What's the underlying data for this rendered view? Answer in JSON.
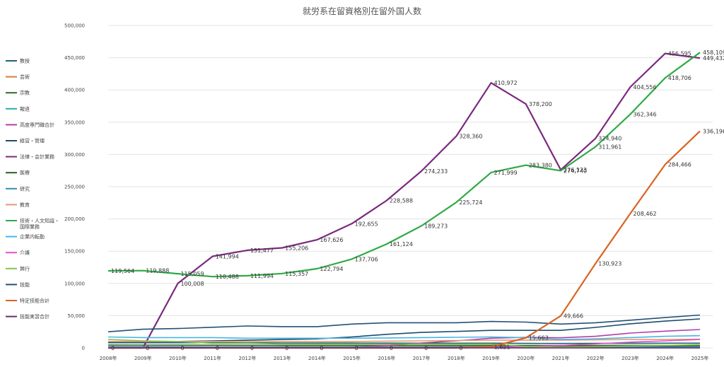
{
  "chart_data": {
    "type": "line",
    "title": "就労系在留資格別在留外国人数",
    "xlabel": "",
    "ylabel": "",
    "ylim": [
      0,
      500000
    ],
    "yticks": [
      "0",
      "50,000",
      "100,000",
      "150,000",
      "200,000",
      "250,000",
      "300,000",
      "350,000",
      "400,000",
      "450,000",
      "500,000"
    ],
    "x": [
      "2008年",
      "2009年",
      "2010年",
      "2011年",
      "2012年",
      "2013年",
      "2014年",
      "2015年",
      "2016年",
      "2017年",
      "2018年",
      "2019年",
      "2020年",
      "2021年",
      "2022年",
      "2023年",
      "2024年",
      "2025年"
    ],
    "grid": true,
    "legend_position": "left",
    "series": [
      {
        "name": "教授",
        "color": "#1f5f7a",
        "values": [
          8000,
          8000,
          8000,
          8000,
          7800,
          7700,
          7600,
          7600,
          7500,
          7400,
          7300,
          7300,
          7000,
          6900,
          7000,
          7200,
          7300,
          7400
        ]
      },
      {
        "name": "芸術",
        "color": "#e07b39",
        "values": [
          500,
          500,
          500,
          500,
          500,
          500,
          500,
          500,
          500,
          500,
          500,
          500,
          500,
          500,
          500,
          500,
          500,
          500
        ]
      },
      {
        "name": "宗教",
        "color": "#2e6b2e",
        "values": [
          4500,
          4400,
          4300,
          4200,
          4100,
          4000,
          4000,
          4000,
          4000,
          4000,
          4000,
          4000,
          3800,
          3700,
          3800,
          3900,
          4000,
          4000
        ]
      },
      {
        "name": "報道",
        "color": "#2fa7b8",
        "values": [
          300,
          300,
          300,
          300,
          250,
          250,
          250,
          250,
          250,
          250,
          250,
          250,
          250,
          250,
          250,
          250,
          250,
          250
        ]
      },
      {
        "name": "高度専門職合計",
        "color": "#b03fa8",
        "values": [
          0,
          0,
          0,
          0,
          0,
          0,
          0,
          1500,
          3700,
          7700,
          11000,
          15000,
          16500,
          15700,
          18000,
          23000,
          26000,
          28500
        ]
      },
      {
        "name": "経営・管理",
        "color": "#1c4d6b",
        "values": [
          9000,
          9000,
          10000,
          11000,
          12000,
          13000,
          14000,
          17000,
          21000,
          24000,
          25600,
          27200,
          27200,
          27200,
          31800,
          37400,
          41600,
          45000
        ]
      },
      {
        "name": "法律・会計業務",
        "color": "#7b2a7e",
        "values": [
          0,
          0,
          100008,
          141994,
          151477,
          155206,
          167626,
          192655,
          228588,
          274233,
          328360,
          410972,
          378200,
          276123,
          324940,
          404556,
          456595,
          449432
        ]
      },
      {
        "name": "医療",
        "color": "#2a5e1e",
        "values": [
          200,
          250,
          300,
          350,
          400,
          500,
          700,
          1100,
          1400,
          1600,
          1700,
          2200,
          2100,
          2000,
          2400,
          2900,
          3100,
          3300
        ]
      },
      {
        "name": "研究",
        "color": "#3190b0",
        "values": [
          2000,
          2000,
          1900,
          1800,
          1800,
          1700,
          1700,
          1700,
          1600,
          1600,
          1500,
          1500,
          1500,
          1400,
          1400,
          1400,
          1400,
          1400
        ]
      },
      {
        "name": "教育",
        "color": "#e39a72",
        "values": [
          10000,
          10000,
          10000,
          10000,
          10000,
          10000,
          10000,
          10000,
          10500,
          11000,
          11500,
          12000,
          12000,
          12000,
          12500,
          13000,
          13000,
          13500
        ]
      },
      {
        "name": "技術・人文知識・国際業務",
        "color": "#2eaa45",
        "values": [
          119564,
          119888,
          115059,
          110488,
          111994,
          115357,
          122794,
          137706,
          161124,
          189273,
          225724,
          271999,
          283380,
          274740,
          311961,
          362346,
          418706,
          458109
        ]
      },
      {
        "name": "企業内転勤",
        "color": "#48b6e6",
        "values": [
          17000,
          16000,
          16000,
          16000,
          15000,
          15000,
          15000,
          15000,
          15500,
          16000,
          16500,
          17000,
          16000,
          13000,
          14000,
          16000,
          18000,
          19000
        ]
      },
      {
        "name": "介護",
        "color": "#e050c8",
        "values": [
          0,
          0,
          0,
          0,
          0,
          0,
          0,
          0,
          0,
          18,
          185,
          592,
          1714,
          3794,
          6284,
          9000,
          11000,
          13000
        ]
      },
      {
        "name": "興行",
        "color": "#86c24a",
        "values": [
          13000,
          11000,
          10000,
          7000,
          7000,
          6000,
          6000,
          6000,
          6000,
          6000,
          6000,
          6000,
          2000,
          1000,
          2000,
          3000,
          4000,
          5000
        ]
      },
      {
        "name": "技能",
        "color": "#24507a",
        "values": [
          25000,
          29000,
          30000,
          32000,
          34000,
          33000,
          33000,
          37000,
          39000,
          39000,
          39000,
          41000,
          40000,
          37000,
          39000,
          43000,
          47000,
          51000
        ]
      },
      {
        "name": "特定技能合計",
        "color": "#d96421",
        "values": [
          0,
          0,
          0,
          0,
          0,
          0,
          0,
          0,
          0,
          0,
          0,
          1621,
          15663,
          49666,
          130923,
          208462,
          284466,
          336196
        ]
      },
      {
        "name": "技能実習合計",
        "color": "#6a2a6e",
        "values": [
          0,
          0,
          0,
          0,
          0,
          0,
          0,
          0,
          0,
          0,
          0,
          0,
          0,
          0,
          0,
          0,
          0,
          0
        ]
      }
    ],
    "data_labels": [
      {
        "series": 10,
        "index": 0,
        "text": "119,564"
      },
      {
        "series": 10,
        "index": 1,
        "text": "119,888"
      },
      {
        "series": 10,
        "index": 2,
        "text": "115,059"
      },
      {
        "series": 10,
        "index": 3,
        "text": "110,488"
      },
      {
        "series": 10,
        "index": 4,
        "text": "111,994"
      },
      {
        "series": 10,
        "index": 5,
        "text": "115,357"
      },
      {
        "series": 10,
        "index": 6,
        "text": "122,794"
      },
      {
        "series": 10,
        "index": 7,
        "text": "137,706"
      },
      {
        "series": 10,
        "index": 8,
        "text": "161,124"
      },
      {
        "series": 10,
        "index": 9,
        "text": "189,273"
      },
      {
        "series": 10,
        "index": 10,
        "text": "225,724"
      },
      {
        "series": 10,
        "index": 11,
        "text": "271,999"
      },
      {
        "series": 10,
        "index": 12,
        "text": "283,380"
      },
      {
        "series": 10,
        "index": 13,
        "text": "274,740"
      },
      {
        "series": 10,
        "index": 14,
        "text": "311,961"
      },
      {
        "series": 10,
        "index": 15,
        "text": "362,346"
      },
      {
        "series": 10,
        "index": 16,
        "text": "418,706"
      },
      {
        "series": 10,
        "index": 17,
        "text": "458,109"
      },
      {
        "series": 6,
        "index": 2,
        "text": "100,008"
      },
      {
        "series": 6,
        "index": 3,
        "text": "141,994"
      },
      {
        "series": 6,
        "index": 4,
        "text": "151,477"
      },
      {
        "series": 6,
        "index": 5,
        "text": "155,206"
      },
      {
        "series": 6,
        "index": 6,
        "text": "167,626"
      },
      {
        "series": 6,
        "index": 7,
        "text": "192,655"
      },
      {
        "series": 6,
        "index": 8,
        "text": "228,588"
      },
      {
        "series": 6,
        "index": 9,
        "text": "274,233"
      },
      {
        "series": 6,
        "index": 10,
        "text": "328,360"
      },
      {
        "series": 6,
        "index": 11,
        "text": "410,972"
      },
      {
        "series": 6,
        "index": 12,
        "text": "378,200"
      },
      {
        "series": 6,
        "index": 13,
        "text": "276,123"
      },
      {
        "series": 6,
        "index": 14,
        "text": "324,940"
      },
      {
        "series": 6,
        "index": 15,
        "text": "404,556"
      },
      {
        "series": 6,
        "index": 16,
        "text": "456,595"
      },
      {
        "series": 6,
        "index": 17,
        "text": "449,432"
      },
      {
        "series": 15,
        "index": 11,
        "text": "1,621"
      },
      {
        "series": 15,
        "index": 12,
        "text": "15,663"
      },
      {
        "series": 15,
        "index": 13,
        "text": "49,666"
      },
      {
        "series": 15,
        "index": 14,
        "text": "130,923"
      },
      {
        "series": 15,
        "index": 15,
        "text": "208,462"
      },
      {
        "series": 15,
        "index": 16,
        "text": "284,466"
      },
      {
        "series": 15,
        "index": 17,
        "text": "336,196"
      },
      {
        "series": 6,
        "index": 0,
        "text": "0"
      },
      {
        "series": 6,
        "index": 1,
        "text": "0"
      },
      {
        "series": 16,
        "index": 2,
        "text": "0"
      },
      {
        "series": 16,
        "index": 3,
        "text": "0"
      },
      {
        "series": 16,
        "index": 4,
        "text": "0"
      },
      {
        "series": 16,
        "index": 5,
        "text": "0"
      },
      {
        "series": 16,
        "index": 6,
        "text": "0"
      },
      {
        "series": 16,
        "index": 7,
        "text": "0"
      },
      {
        "series": 16,
        "index": 8,
        "text": "0"
      },
      {
        "series": 16,
        "index": 9,
        "text": "0"
      },
      {
        "series": 16,
        "index": 10,
        "text": "0"
      }
    ]
  }
}
